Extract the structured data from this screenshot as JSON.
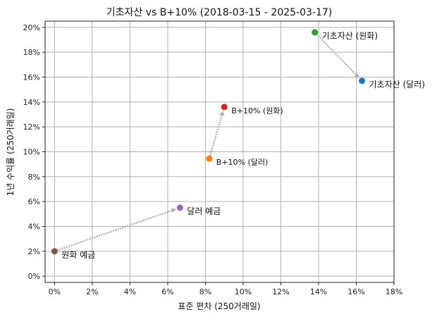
{
  "chart_data": {
    "type": "scatter",
    "title": "기초자산 vs B+10% (2018-03-15 - 2025-03-17)",
    "xlabel": "표준 편차 (250거래일)",
    "ylabel": "1년 수익률 (250거래일)",
    "xlim": [
      -0.005,
      0.18
    ],
    "ylim": [
      -0.005,
      0.205
    ],
    "x_ticks": [
      0,
      0.02,
      0.04,
      0.06,
      0.08,
      0.1,
      0.12,
      0.14,
      0.16,
      0.18
    ],
    "x_tick_labels": [
      "0%",
      "2%",
      "4%",
      "6%",
      "8%",
      "10%",
      "12%",
      "14%",
      "16%",
      "18%"
    ],
    "y_ticks": [
      0,
      0.02,
      0.04,
      0.06,
      0.08,
      0.1,
      0.12,
      0.14,
      0.16,
      0.18,
      0.2
    ],
    "y_tick_labels": [
      "0%",
      "2%",
      "4%",
      "6%",
      "8%",
      "10%",
      "12%",
      "14%",
      "16%",
      "18%",
      "20%"
    ],
    "grid": true,
    "points": [
      {
        "label": "원화 예금",
        "x": 0.0,
        "y": 0.02,
        "color": "#8c564b"
      },
      {
        "label": "달러 예금",
        "x": 0.0665,
        "y": 0.055,
        "color": "#9467bd"
      },
      {
        "label": "B+10% (달러)",
        "x": 0.082,
        "y": 0.0945,
        "color": "#ff7f0e"
      },
      {
        "label": "B+10% (원화)",
        "x": 0.09,
        "y": 0.136,
        "color": "#d62728"
      },
      {
        "label": "기초자산 (원화)",
        "x": 0.138,
        "y": 0.196,
        "color": "#2ca02c"
      },
      {
        "label": "기초자산 (달러)",
        "x": 0.163,
        "y": 0.157,
        "color": "#1f77b4"
      }
    ],
    "arrows": [
      {
        "from": "원화 예금",
        "to": "달러 예금"
      },
      {
        "from": "B+10% (달러)",
        "to": "B+10% (원화)"
      },
      {
        "from": "기초자산 (원화)",
        "to": "기초자산 (달러)"
      }
    ],
    "arrow_color": "#b0b0b0"
  }
}
